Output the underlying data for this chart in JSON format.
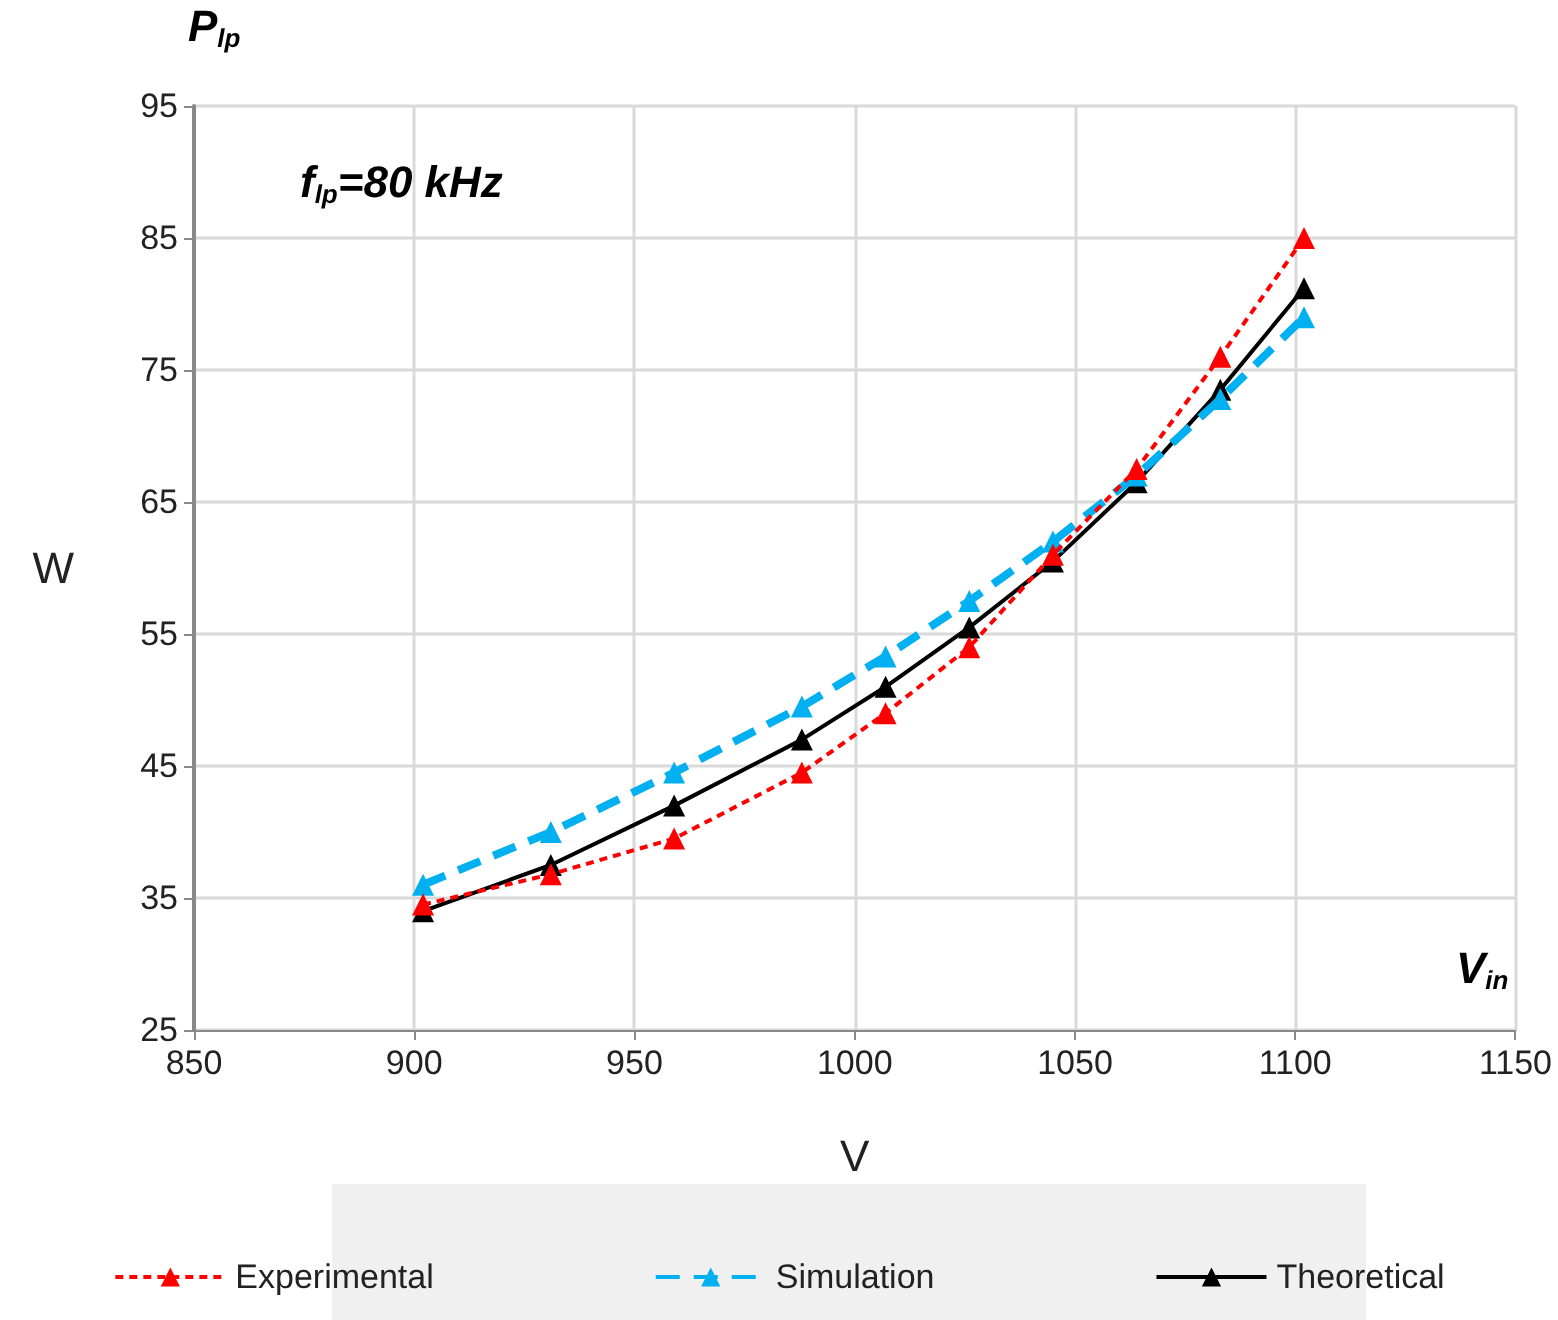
{
  "chart_data": {
    "type": "line",
    "xlabel": "V",
    "ylabel": "W",
    "annotations": [
      "P$_{lp}$",
      "f$_{lp}$=80 kHz",
      "V$_{in}$"
    ],
    "x": [
      902,
      931,
      959,
      988,
      1007,
      1026,
      1045,
      1064,
      1083,
      1102
    ],
    "series": [
      {
        "name": "Experimental",
        "color": "#ff0000",
        "line_style": "dotted",
        "values": [
          34.5,
          36.8,
          39.5,
          44.5,
          49,
          54,
          61,
          67.5,
          76,
          85
        ]
      },
      {
        "name": "Simulation",
        "color": "#00b0f0",
        "line_style": "dashed",
        "values": [
          36,
          40,
          44.5,
          49.5,
          53.3,
          57.5,
          62,
          67,
          72.8,
          79
        ]
      },
      {
        "name": "Theoretical",
        "color": "#000000",
        "line_style": "solid",
        "values": [
          34,
          37.5,
          42,
          47,
          51,
          55.5,
          60.5,
          66.5,
          73.5,
          81.2
        ]
      }
    ],
    "xlim": [
      850,
      1150
    ],
    "xticks": [
      850,
      900,
      950,
      1000,
      1050,
      1100,
      1150
    ],
    "ylim": [
      25,
      95
    ],
    "yticks": [
      25,
      35,
      45,
      55,
      65,
      75,
      85,
      95
    ],
    "grid": true,
    "legend": "bottom",
    "marker": "triangle"
  }
}
